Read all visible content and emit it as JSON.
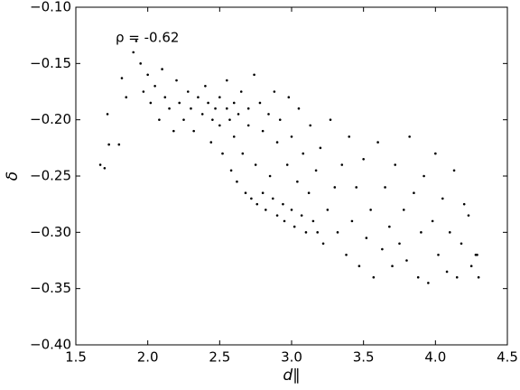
{
  "chart_data": {
    "type": "scatter",
    "x_label": "d∥",
    "y_label": "δ",
    "annotation": "ρ = -0.62",
    "color": "#000000",
    "xlim": [
      1.5,
      4.5
    ],
    "ylim": [
      -0.4,
      -0.1
    ],
    "xticks": [
      1.5,
      {
        "value": 2,
        "label": "2.0"
      },
      2.5,
      {
        "value": 3,
        "label": "3.0"
      },
      3.5,
      {
        "value": 4,
        "label": "4.0"
      },
      4.5
    ],
    "yticks": [
      {
        "value": -0.4,
        "label": "−0.40"
      },
      {
        "value": -0.35,
        "label": "−0.35"
      },
      {
        "value": -0.3,
        "label": "−0.30"
      },
      {
        "value": -0.25,
        "label": "−0.25"
      },
      {
        "value": -0.2,
        "label": "−0.20"
      },
      {
        "value": -0.15,
        "label": "−0.15"
      },
      {
        "value": -0.1,
        "label": "−0.10"
      }
    ],
    "x": [
      1.67,
      1.7,
      1.72,
      1.73,
      1.8,
      1.82,
      1.85,
      1.9,
      1.92,
      1.95,
      1.97,
      2.0,
      2.02,
      2.05,
      2.08,
      2.1,
      2.12,
      2.15,
      2.18,
      2.2,
      2.22,
      2.25,
      2.28,
      2.3,
      2.32,
      2.35,
      2.38,
      2.4,
      2.42,
      2.44,
      2.45,
      2.47,
      2.5,
      2.5,
      2.52,
      2.55,
      2.55,
      2.57,
      2.58,
      2.6,
      2.6,
      2.62,
      2.63,
      2.65,
      2.66,
      2.68,
      2.7,
      2.7,
      2.72,
      2.74,
      2.75,
      2.76,
      2.78,
      2.8,
      2.8,
      2.82,
      2.84,
      2.85,
      2.87,
      2.88,
      2.9,
      2.9,
      2.92,
      2.94,
      2.95,
      2.97,
      2.98,
      3.0,
      3.0,
      3.02,
      3.04,
      3.05,
      3.07,
      3.08,
      3.1,
      3.12,
      3.13,
      3.15,
      3.17,
      3.18,
      3.2,
      3.22,
      3.25,
      3.27,
      3.3,
      3.32,
      3.35,
      3.38,
      3.4,
      3.42,
      3.45,
      3.47,
      3.5,
      3.52,
      3.55,
      3.57,
      3.6,
      3.63,
      3.65,
      3.68,
      3.7,
      3.72,
      3.75,
      3.78,
      3.8,
      3.82,
      3.85,
      3.88,
      3.9,
      3.92,
      3.95,
      3.98,
      4.0,
      4.02,
      4.05,
      4.08,
      4.1,
      4.13,
      4.15,
      4.18,
      4.2,
      4.23,
      4.25,
      4.28,
      4.3,
      4.29
    ],
    "y": [
      -0.24,
      -0.243,
      -0.195,
      -0.222,
      -0.222,
      -0.163,
      -0.18,
      -0.14,
      -0.13,
      -0.15,
      -0.175,
      -0.16,
      -0.185,
      -0.17,
      -0.2,
      -0.155,
      -0.18,
      -0.19,
      -0.21,
      -0.165,
      -0.185,
      -0.2,
      -0.175,
      -0.19,
      -0.21,
      -0.18,
      -0.195,
      -0.17,
      -0.185,
      -0.22,
      -0.2,
      -0.19,
      -0.18,
      -0.205,
      -0.23,
      -0.19,
      -0.165,
      -0.2,
      -0.245,
      -0.185,
      -0.215,
      -0.255,
      -0.195,
      -0.175,
      -0.23,
      -0.265,
      -0.19,
      -0.205,
      -0.27,
      -0.16,
      -0.24,
      -0.275,
      -0.185,
      -0.21,
      -0.265,
      -0.28,
      -0.195,
      -0.25,
      -0.27,
      -0.175,
      -0.285,
      -0.22,
      -0.2,
      -0.275,
      -0.29,
      -0.24,
      -0.18,
      -0.28,
      -0.215,
      -0.295,
      -0.255,
      -0.19,
      -0.285,
      -0.23,
      -0.3,
      -0.265,
      -0.205,
      -0.29,
      -0.245,
      -0.3,
      -0.225,
      -0.31,
      -0.28,
      -0.2,
      -0.26,
      -0.3,
      -0.24,
      -0.32,
      -0.215,
      -0.29,
      -0.26,
      -0.33,
      -0.235,
      -0.305,
      -0.28,
      -0.34,
      -0.22,
      -0.315,
      -0.26,
      -0.295,
      -0.33,
      -0.24,
      -0.31,
      -0.28,
      -0.325,
      -0.215,
      -0.265,
      -0.34,
      -0.3,
      -0.25,
      -0.345,
      -0.29,
      -0.23,
      -0.32,
      -0.27,
      -0.335,
      -0.3,
      -0.245,
      -0.34,
      -0.31,
      -0.275,
      -0.285,
      -0.33,
      -0.32,
      -0.34,
      -0.32
    ]
  }
}
